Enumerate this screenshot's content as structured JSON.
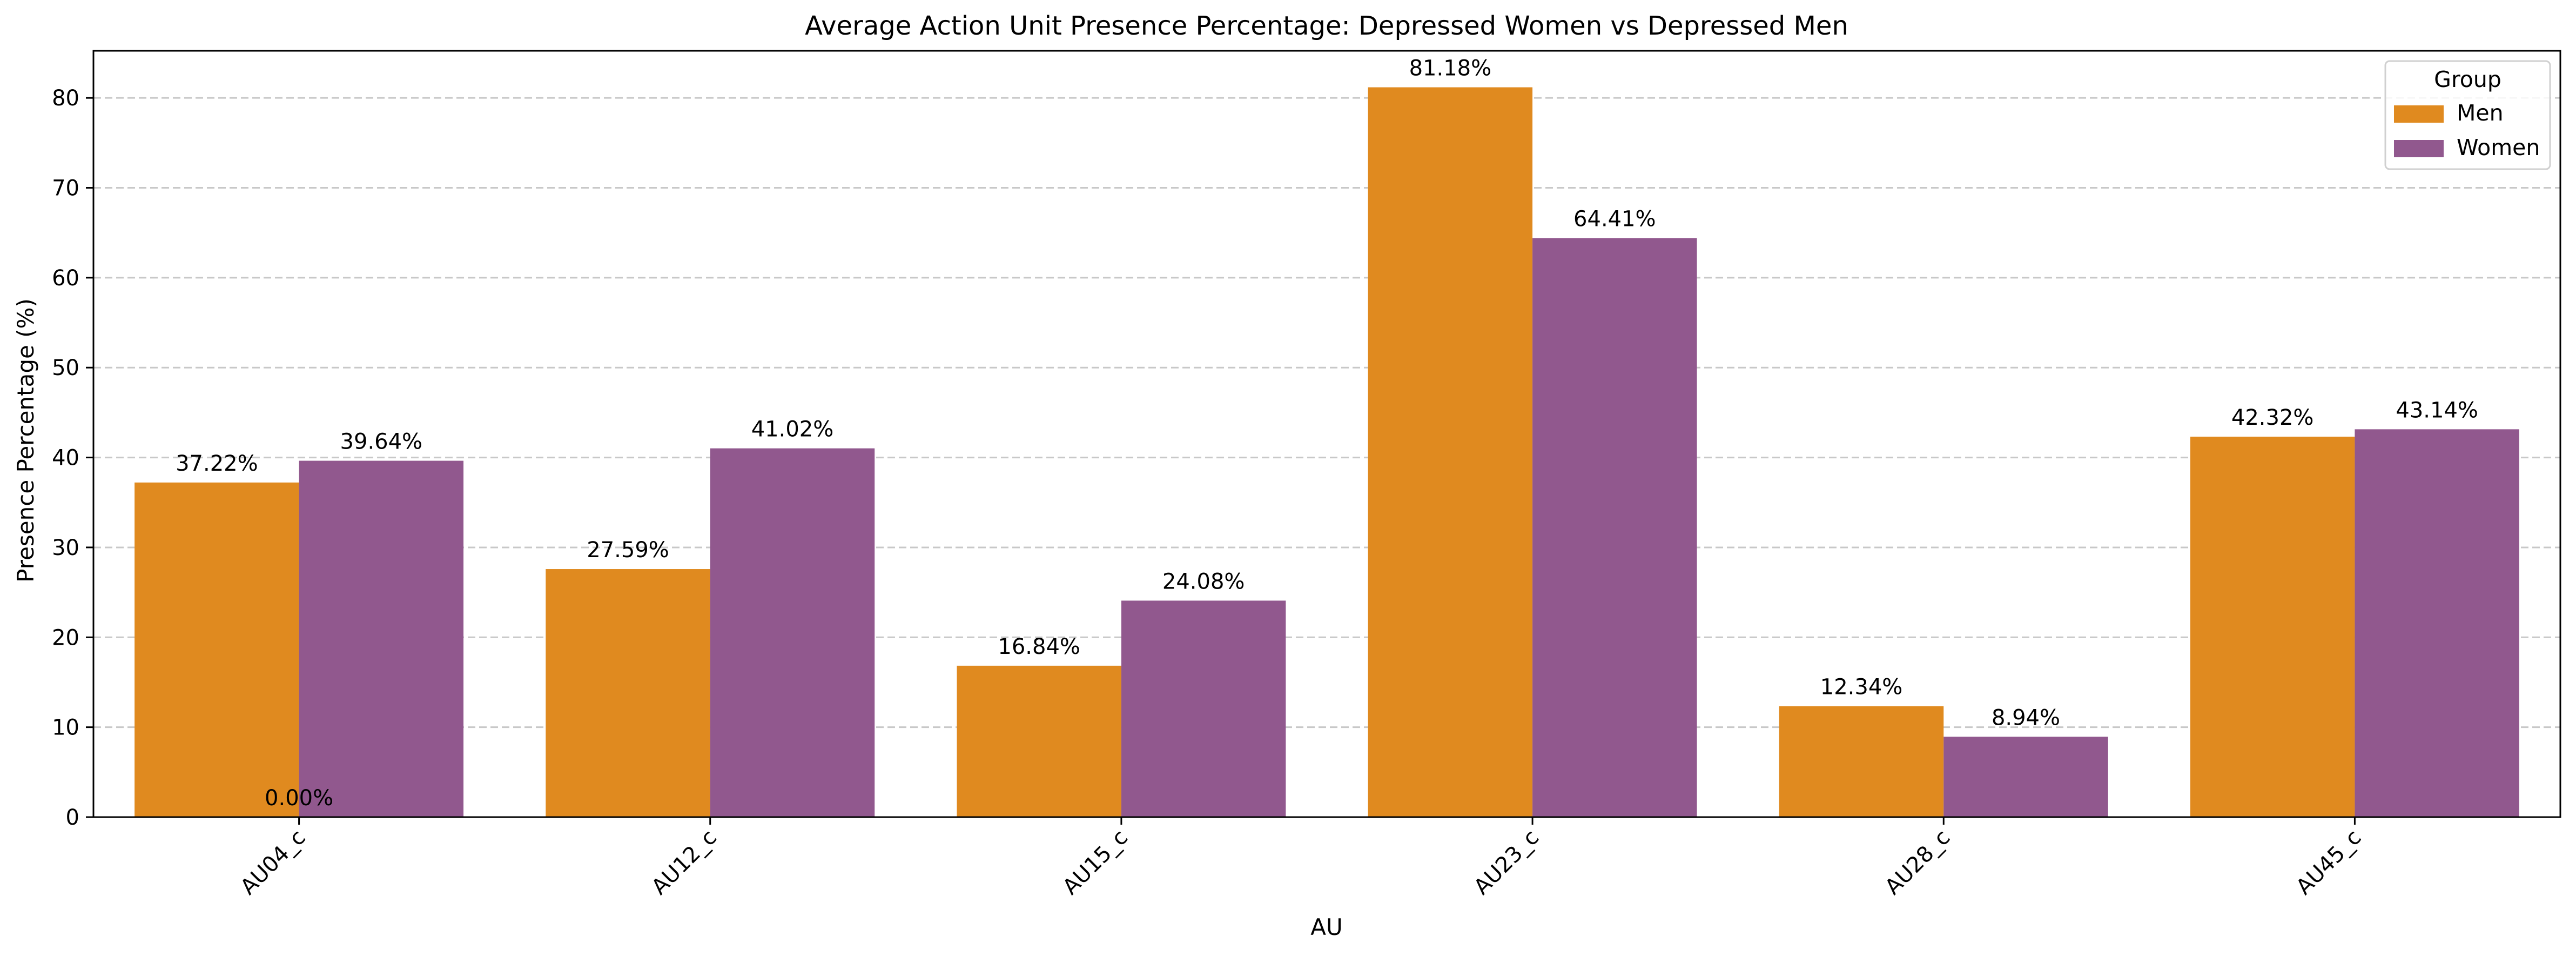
{
  "chart_data": {
    "type": "bar",
    "title": "Average Action Unit Presence Percentage: Depressed Women vs Depressed Men",
    "xlabel": "AU",
    "ylabel": "Presence Percentage (%)",
    "categories": [
      "AU04_c",
      "AU12_c",
      "AU15_c",
      "AU23_c",
      "AU28_c",
      "AU45_c"
    ],
    "series": [
      {
        "name": "Men",
        "color": "#e08a1f",
        "values": [
          37.22,
          27.59,
          16.84,
          81.18,
          12.34,
          42.32
        ]
      },
      {
        "name": "Women",
        "color": "#91588e",
        "values": [
          39.64,
          41.02,
          24.08,
          64.41,
          8.94,
          43.14
        ]
      }
    ],
    "bar_labels": [
      [
        "37.22%",
        "27.59%",
        "16.84%",
        "81.18%",
        "12.34%",
        "42.32%"
      ],
      [
        "39.64%",
        "41.02%",
        "24.08%",
        "64.41%",
        "8.94%",
        "43.14%"
      ]
    ],
    "extra_annotation": {
      "text": "0.00%",
      "category": "AU04_c",
      "value": 0
    },
    "yticks": [
      0,
      10,
      20,
      30,
      40,
      50,
      60,
      70,
      80
    ],
    "ylim": [
      0,
      85.24
    ],
    "grid": "y-dashed",
    "legend": {
      "title": "Group",
      "placement": "top-right"
    }
  }
}
